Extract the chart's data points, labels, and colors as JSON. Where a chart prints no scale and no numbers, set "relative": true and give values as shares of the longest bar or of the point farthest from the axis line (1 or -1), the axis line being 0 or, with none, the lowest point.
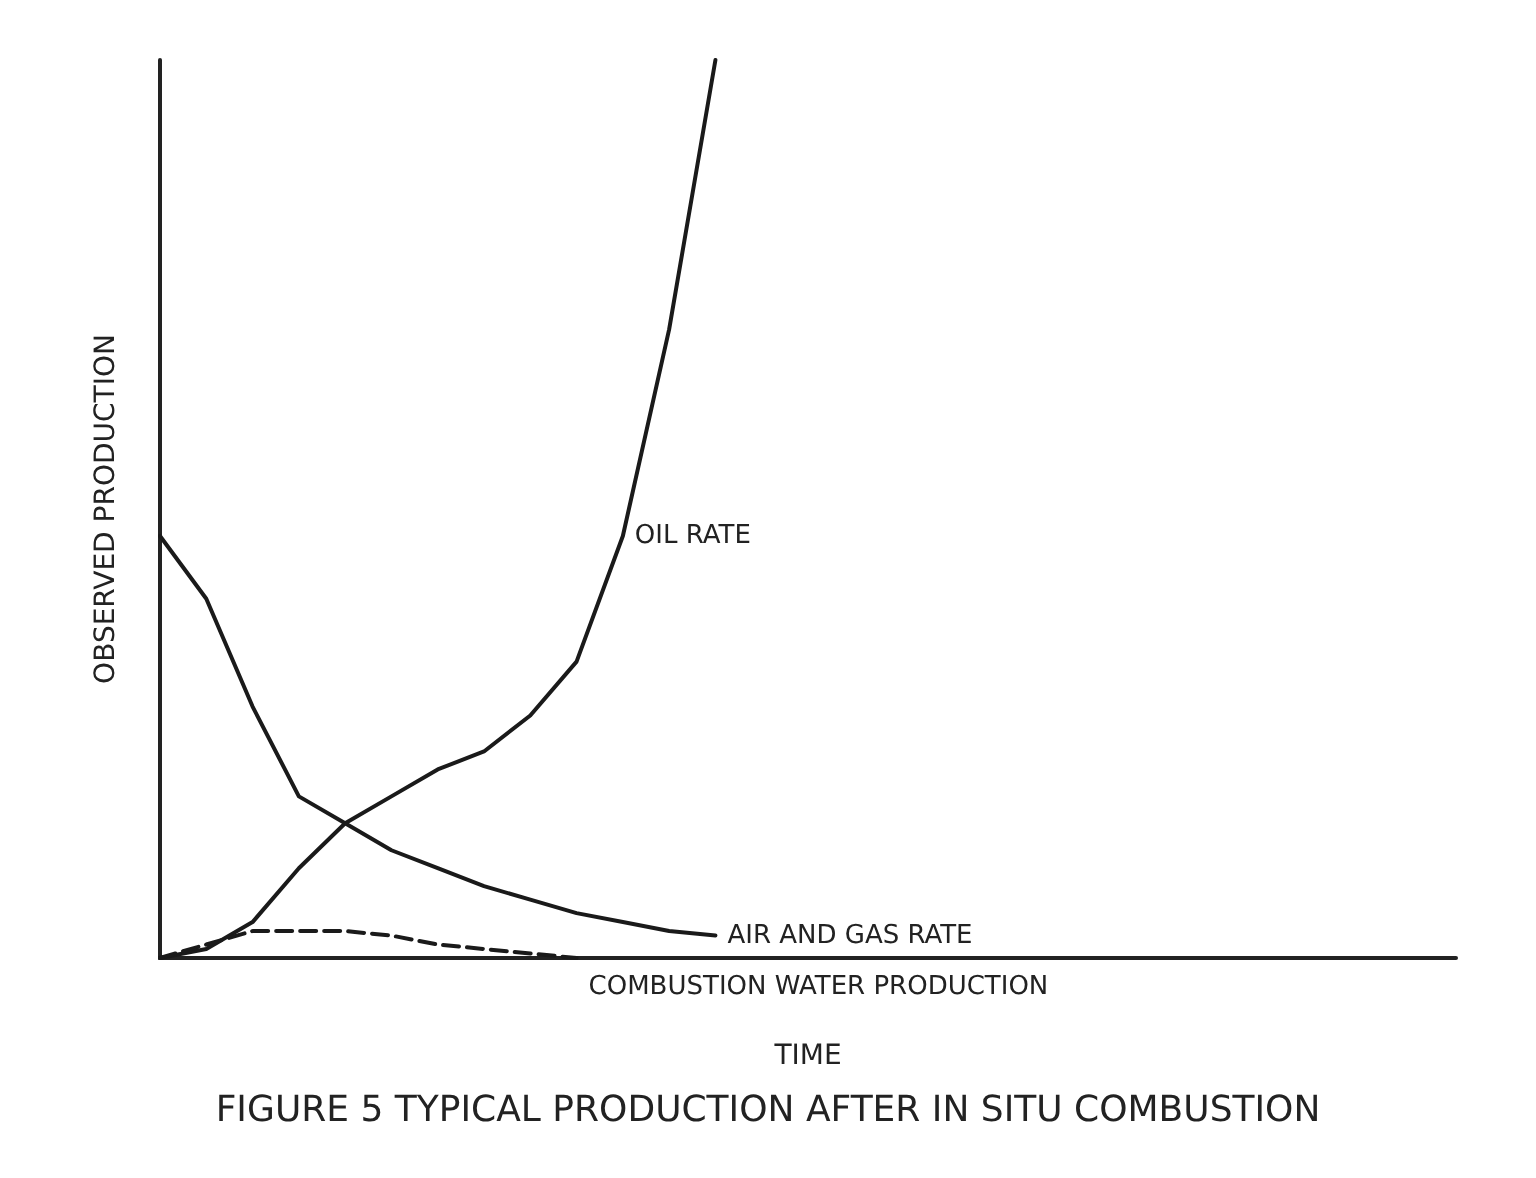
{
  "chart_data": {
    "type": "line",
    "title": "FIGURE 5 TYPICAL PRODUCTION AFTER IN SITU COMBUSTION",
    "xlabel": "TIME",
    "ylabel": "OBSERVED PRODUCTION",
    "relative": true,
    "grid": false,
    "legend": false,
    "categories": [
      null,
      null,
      null,
      null,
      null,
      null,
      null,
      null,
      null,
      null,
      null,
      null,
      null,
      null,
      null,
      null,
      null,
      null,
      null,
      null,
      null,
      null,
      null,
      null,
      null,
      null,
      null,
      null,
      null
    ],
    "series": [
      {
        "name": "OIL RATE",
        "color": "#1a1a1a",
        "line_style": "solid",
        "values": [
          0,
          0.01,
          0.04,
          0.1,
          0.15,
          0.18,
          0.21,
          0.23,
          0.27,
          0.33,
          0.47,
          0.7,
          1,
          null,
          null,
          null,
          null,
          null,
          null,
          null,
          null,
          null,
          null,
          null,
          null,
          null,
          null,
          null,
          null
        ]
      },
      {
        "name": "AIR AND GAS RATE",
        "color": "#1a1a1a",
        "line_style": "solid",
        "values": [
          0.47,
          0.4,
          0.28,
          0.18,
          0.15,
          0.12,
          0.1,
          0.08,
          0.065,
          0.05,
          0.04,
          0.03,
          0.025,
          null,
          null,
          null,
          null,
          null,
          null,
          null,
          null,
          null,
          null,
          null,
          null,
          null,
          null,
          null,
          null
        ]
      },
      {
        "name": "COMBUSTION WATER PRODUCTION",
        "color": "#1a1a1a",
        "line_style": "dashed",
        "values": [
          0,
          0.015,
          0.03,
          0.03,
          0.03,
          0.025,
          0.015,
          0.01,
          0.005,
          0,
          null,
          null,
          null,
          null,
          null,
          null,
          null,
          null,
          null,
          null,
          null,
          null,
          null,
          null,
          null,
          null,
          null,
          null,
          null
        ]
      }
    ]
  }
}
